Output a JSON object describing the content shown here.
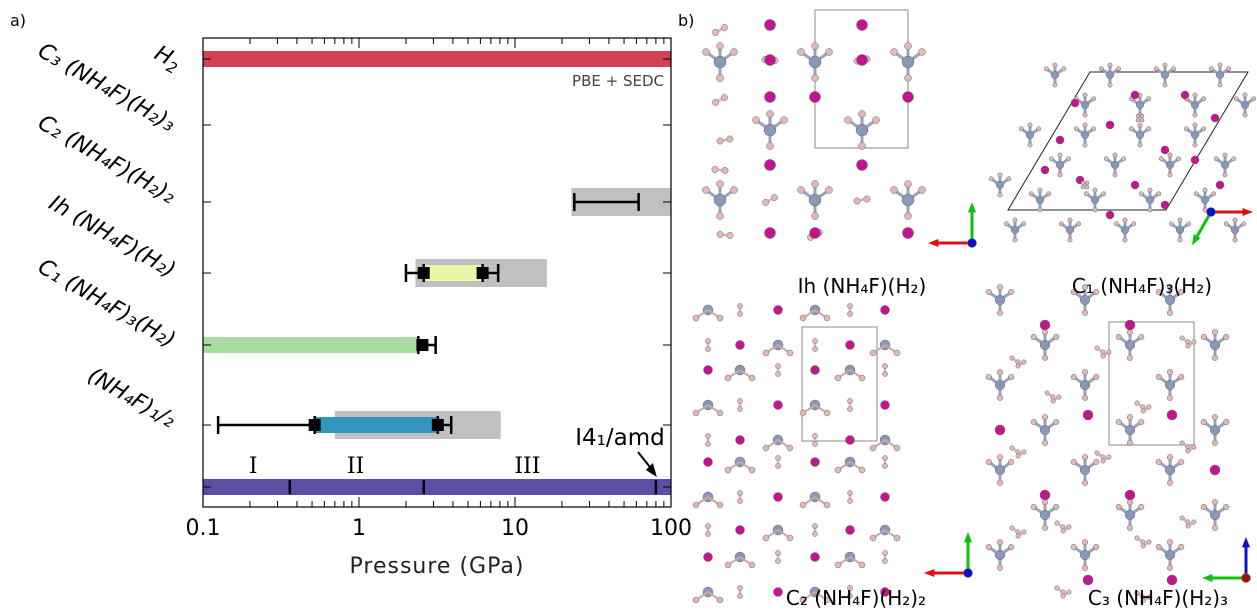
{
  "panel_a_label": "a)",
  "panel_b_label": "b)",
  "chart_data": {
    "type": "bar",
    "orientation": "horizontal",
    "xscale": "log",
    "xlim": [
      0.1,
      100
    ],
    "xlabel": "Pressure (GPa)",
    "xticks": [
      0.1,
      1,
      10,
      100
    ],
    "xtick_labels": [
      "0.1",
      "1",
      "10",
      "100"
    ],
    "method_label": "PBE + SEDC",
    "categories": [
      {
        "key": "H2",
        "base": "H",
        "sub": "2"
      },
      {
        "key": "C3",
        "base": "C₃ (NH₄F)(H₂)₃"
      },
      {
        "key": "C2",
        "base": "C₂ (NH₄F)(H₂)₂"
      },
      {
        "key": "Ih",
        "base": "Ih (NH₄F)(H₂)"
      },
      {
        "key": "C1",
        "base": "C₁ (NH₄F)₃(H₂)"
      },
      {
        "key": "NH4F",
        "base": "(NH₄F)₁/₂"
      }
    ],
    "ranges": [
      {
        "category": "H2",
        "layer": "main",
        "from": 0.1,
        "to": 100,
        "color": "#d24253"
      },
      {
        "category": "C2",
        "layer": "grey",
        "from": 23,
        "to": 100,
        "color": "#c0c0c0"
      },
      {
        "category": "Ih",
        "layer": "grey",
        "from": 2.3,
        "to": 16,
        "color": "#c0c0c0"
      },
      {
        "category": "Ih",
        "layer": "main",
        "from": 2.6,
        "to": 6.2,
        "color": "#ecf5a8"
      },
      {
        "category": "C1",
        "layer": "main",
        "from": 0.1,
        "to": 2.4,
        "color": "#a8dca3"
      },
      {
        "category": "C1main2",
        "layer": "grey",
        "from": 0.7,
        "to": 8.1,
        "color": "#c0c0c0"
      },
      {
        "category": "C1main2",
        "layer": "main",
        "from": 0.52,
        "to": 3.2,
        "color": "#3496bd"
      },
      {
        "category": "NH4F",
        "layer": "main",
        "from": 0.1,
        "to": 100,
        "color": "#5a4ea5"
      }
    ],
    "error_bars": [
      {
        "row": "C2",
        "from": 24,
        "to": 62
      },
      {
        "row": "Ih",
        "from": 2.0,
        "to": 2.6,
        "marker_at": 2.6
      },
      {
        "row": "Ih",
        "from": 6.2,
        "to": 7.8,
        "marker_at": 6.2
      },
      {
        "row": "C1",
        "from": 2.4,
        "to": 3.1,
        "marker_at": 2.55
      },
      {
        "row": "C1main2",
        "from": 0.125,
        "to": 0.52,
        "marker_at": 0.52
      },
      {
        "row": "C1main2",
        "from": 3.2,
        "to": 3.9,
        "marker_at": 3.2
      }
    ],
    "phase_boundaries": [
      0.36,
      2.6,
      80
    ],
    "phase_labels": [
      {
        "text": "I",
        "at": 0.21
      },
      {
        "text": "II",
        "at": 0.95
      },
      {
        "text": "III",
        "at": 12
      }
    ],
    "annotation": {
      "text": "I4₁/amd",
      "points_to": 80
    }
  },
  "structures": {
    "ih_label": "Ih (NH₄F)(H₂)",
    "c1_label": "C₁ (NH₄F)₃(H₂)",
    "c2_label": "C₂ (NH₄F)(H₂)₂",
    "c3_label": "C₃ (NH₄F)(H₂)₃"
  },
  "colors": {
    "fluorine": "#c2168f",
    "nitrogen": "#8a97b8",
    "hydrogen": "#e2b8b8",
    "axis_x": "#e01010",
    "axis_y": "#10c010",
    "axis_z": "#1010c0"
  }
}
